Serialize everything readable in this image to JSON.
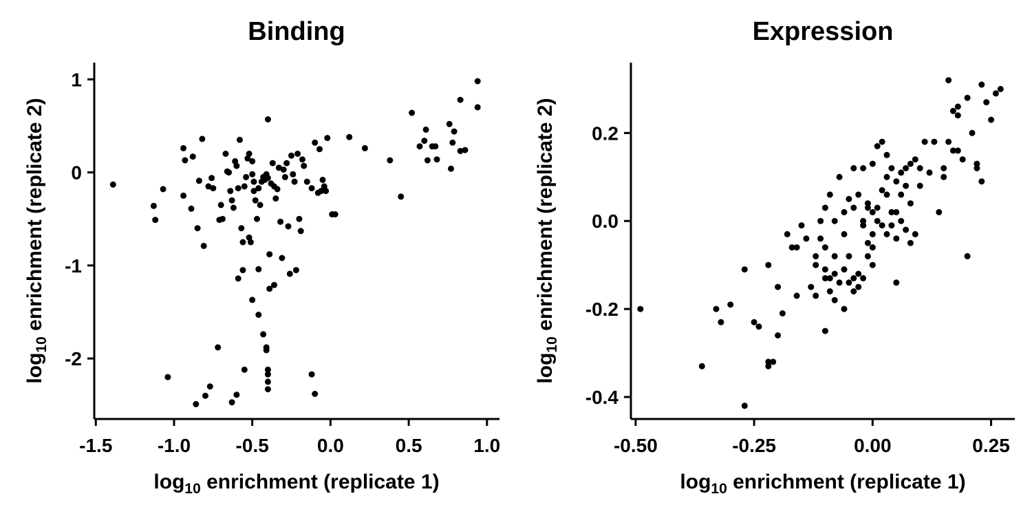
{
  "chart_data": [
    {
      "type": "scatter",
      "title": "Binding",
      "xlabel": {
        "prefix": "log",
        "sub": "10",
        "rest": " enrichment (replicate 1)"
      },
      "ylabel": {
        "prefix": "log",
        "sub": "10",
        "rest": " enrichment (replicate 2)"
      },
      "xlim": [
        -1.51,
        1.08
      ],
      "ylim": [
        -2.65,
        1.18
      ],
      "xticks": [
        -1.5,
        -1.0,
        -0.5,
        0.0,
        0.5,
        1.0
      ],
      "xtick_labels": [
        "-1.5",
        "-1.0",
        "-0.5",
        "0.0",
        "0.5",
        "1.0"
      ],
      "yticks": [
        1,
        0,
        -1,
        -2
      ],
      "ytick_labels": [
        "1",
        "0",
        "-1",
        "-2"
      ],
      "grid": false,
      "color": "#000000",
      "points": [
        [
          -1.39,
          -0.13
        ],
        [
          -1.13,
          -0.36
        ],
        [
          -1.12,
          -0.51
        ],
        [
          -1.07,
          -0.18
        ],
        [
          -0.94,
          0.26
        ],
        [
          -0.93,
          0.13
        ],
        [
          -0.94,
          -0.25
        ],
        [
          -0.89,
          -0.39
        ],
        [
          -0.88,
          0.17
        ],
        [
          -0.85,
          -0.6
        ],
        [
          -0.84,
          -0.09
        ],
        [
          -0.82,
          0.36
        ],
        [
          -0.81,
          -0.79
        ],
        [
          -0.78,
          -0.15
        ],
        [
          -0.76,
          -0.06
        ],
        [
          -0.75,
          -0.17
        ],
        [
          -0.71,
          -0.51
        ],
        [
          -0.7,
          -0.35
        ],
        [
          -0.69,
          -0.5
        ],
        [
          -0.67,
          0.2
        ],
        [
          -0.66,
          0.01
        ],
        [
          -0.65,
          0.0
        ],
        [
          -0.64,
          -0.2
        ],
        [
          -0.63,
          -0.3
        ],
        [
          -0.62,
          -0.38
        ],
        [
          -0.61,
          0.12
        ],
        [
          -0.6,
          0.07
        ],
        [
          -0.59,
          -0.17
        ],
        [
          -0.58,
          0.35
        ],
        [
          -0.57,
          -0.6
        ],
        [
          -0.56,
          -0.75
        ],
        [
          -0.55,
          -0.15
        ],
        [
          -0.54,
          -0.05
        ],
        [
          -0.53,
          0.15
        ],
        [
          -0.52,
          0.2
        ],
        [
          -0.52,
          -0.7
        ],
        [
          -0.51,
          -0.75
        ],
        [
          -0.5,
          0.12
        ],
        [
          -0.5,
          -0.02
        ],
        [
          -0.49,
          -0.1
        ],
        [
          -0.49,
          -0.2
        ],
        [
          -0.48,
          -0.3
        ],
        [
          -0.47,
          -0.5
        ],
        [
          -0.46,
          -1.04
        ],
        [
          -0.46,
          -0.17
        ],
        [
          -0.45,
          -0.35
        ],
        [
          -0.44,
          -0.1
        ],
        [
          -0.43,
          -0.05
        ],
        [
          -0.42,
          -0.08
        ],
        [
          -0.41,
          -0.02
        ],
        [
          -0.4,
          0.57
        ],
        [
          -0.4,
          -0.06
        ],
        [
          -0.39,
          -0.88
        ],
        [
          -0.38,
          -0.12
        ],
        [
          -0.37,
          0.1
        ],
        [
          -0.36,
          -0.15
        ],
        [
          -0.35,
          -0.28
        ],
        [
          -0.34,
          -0.18
        ],
        [
          -0.33,
          0.05
        ],
        [
          -0.32,
          -0.53
        ],
        [
          -0.31,
          -0.92
        ],
        [
          -0.3,
          0.03
        ],
        [
          -0.29,
          -0.05
        ],
        [
          -0.28,
          0.1
        ],
        [
          -0.27,
          -0.58
        ],
        [
          -0.26,
          -1.09
        ],
        [
          -0.25,
          0.18
        ],
        [
          -0.24,
          -0.02
        ],
        [
          -0.23,
          -0.1
        ],
        [
          -0.22,
          -1.05
        ],
        [
          -0.21,
          0.2
        ],
        [
          -0.2,
          -0.5
        ],
        [
          -0.19,
          -0.63
        ],
        [
          -0.18,
          0.14
        ],
        [
          -0.17,
          0.07
        ],
        [
          -0.15,
          -0.1
        ],
        [
          -0.12,
          -0.17
        ],
        [
          -0.1,
          0.32
        ],
        [
          -0.08,
          -0.22
        ],
        [
          -0.07,
          0.25
        ],
        [
          -0.06,
          -0.2
        ],
        [
          -0.05,
          -0.08
        ],
        [
          -0.04,
          -0.15
        ],
        [
          -0.03,
          -0.2
        ],
        [
          -0.02,
          0.37
        ],
        [
          0.01,
          -0.45
        ],
        [
          0.03,
          -0.45
        ],
        [
          0.12,
          0.38
        ],
        [
          0.22,
          0.26
        ],
        [
          0.38,
          0.13
        ],
        [
          0.45,
          -0.26
        ],
        [
          0.52,
          0.64
        ],
        [
          0.57,
          0.28
        ],
        [
          0.6,
          0.34
        ],
        [
          0.61,
          0.46
        ],
        [
          0.62,
          0.13
        ],
        [
          0.65,
          0.28
        ],
        [
          0.67,
          0.28
        ],
        [
          0.68,
          0.14
        ],
        [
          0.76,
          0.52
        ],
        [
          0.77,
          0.04
        ],
        [
          0.78,
          0.32
        ],
        [
          0.79,
          0.44
        ],
        [
          0.83,
          0.23
        ],
        [
          0.83,
          0.78
        ],
        [
          0.86,
          0.24
        ],
        [
          0.94,
          0.7
        ],
        [
          0.94,
          0.98
        ],
        [
          -0.59,
          -1.14
        ],
        [
          -0.56,
          -1.05
        ],
        [
          -0.5,
          -1.37
        ],
        [
          -0.46,
          -1.53
        ],
        [
          -0.43,
          -1.74
        ],
        [
          -0.41,
          -1.88
        ],
        [
          -0.41,
          -1.91
        ],
        [
          -0.4,
          -2.12
        ],
        [
          -0.4,
          -2.17
        ],
        [
          -0.4,
          -2.25
        ],
        [
          -0.4,
          -2.33
        ],
        [
          -0.36,
          -1.21
        ],
        [
          -0.39,
          -1.25
        ],
        [
          -0.72,
          -1.88
        ],
        [
          -1.04,
          -2.2
        ],
        [
          -0.86,
          -2.49
        ],
        [
          -0.8,
          -2.4
        ],
        [
          -0.77,
          -2.3
        ],
        [
          -0.63,
          -2.47
        ],
        [
          -0.6,
          -2.39
        ],
        [
          -0.55,
          -2.12
        ],
        [
          -0.12,
          -2.17
        ],
        [
          -0.1,
          -2.38
        ]
      ]
    },
    {
      "type": "scatter",
      "title": "Expression",
      "xlabel": {
        "prefix": "log",
        "sub": "10",
        "rest": " enrichment (replicate 1)"
      },
      "ylabel": {
        "prefix": "log",
        "sub": "10",
        "rest": " enrichment (replicate 2)"
      },
      "xlim": [
        -0.51,
        0.3
      ],
      "ylim": [
        -0.45,
        0.36
      ],
      "xticks": [
        -0.5,
        -0.25,
        0.0,
        0.25
      ],
      "xtick_labels": [
        "-0.50",
        "-0.25",
        "0.00",
        "0.25"
      ],
      "yticks": [
        0.2,
        0.0,
        -0.2,
        -0.4
      ],
      "ytick_labels": [
        "0.2",
        "0.0",
        "-0.2",
        "-0.4"
      ],
      "grid": false,
      "color": "#000000",
      "points": [
        [
          -0.49,
          -0.2
        ],
        [
          -0.36,
          -0.33
        ],
        [
          -0.33,
          -0.2
        ],
        [
          -0.32,
          -0.23
        ],
        [
          -0.3,
          -0.19
        ],
        [
          -0.27,
          -0.42
        ],
        [
          -0.27,
          -0.11
        ],
        [
          -0.25,
          -0.23
        ],
        [
          -0.24,
          -0.24
        ],
        [
          -0.22,
          -0.1
        ],
        [
          -0.22,
          -0.32
        ],
        [
          -0.22,
          -0.33
        ],
        [
          -0.21,
          -0.32
        ],
        [
          -0.2,
          -0.26
        ],
        [
          -0.2,
          -0.15
        ],
        [
          -0.19,
          -0.21
        ],
        [
          -0.18,
          -0.03
        ],
        [
          -0.17,
          -0.06
        ],
        [
          -0.16,
          -0.17
        ],
        [
          -0.16,
          -0.06
        ],
        [
          -0.15,
          -0.01
        ],
        [
          -0.14,
          -0.04
        ],
        [
          -0.13,
          -0.15
        ],
        [
          -0.12,
          -0.17
        ],
        [
          -0.12,
          -0.08
        ],
        [
          -0.11,
          0.0
        ],
        [
          -0.11,
          -0.04
        ],
        [
          -0.1,
          -0.13
        ],
        [
          -0.1,
          -0.25
        ],
        [
          -0.1,
          -0.11
        ],
        [
          -0.1,
          -0.06
        ],
        [
          -0.09,
          0.06
        ],
        [
          -0.09,
          -0.13
        ],
        [
          -0.09,
          -0.16
        ],
        [
          -0.08,
          -0.12
        ],
        [
          -0.08,
          -0.08
        ],
        [
          -0.08,
          -0.18
        ],
        [
          -0.07,
          -0.14
        ],
        [
          -0.07,
          0.1
        ],
        [
          -0.06,
          -0.2
        ],
        [
          -0.06,
          -0.11
        ],
        [
          -0.06,
          -0.03
        ],
        [
          -0.05,
          -0.08
        ],
        [
          -0.05,
          -0.14
        ],
        [
          -0.04,
          -0.13
        ],
        [
          -0.04,
          -0.16
        ],
        [
          -0.04,
          0.12
        ],
        [
          -0.04,
          0.03
        ],
        [
          -0.03,
          0.06
        ],
        [
          -0.03,
          -0.12
        ],
        [
          -0.03,
          -0.15
        ],
        [
          -0.02,
          0.12
        ],
        [
          -0.02,
          0.0
        ],
        [
          -0.02,
          -0.01
        ],
        [
          -0.02,
          -0.13
        ],
        [
          -0.01,
          0.03
        ],
        [
          -0.01,
          -0.05
        ],
        [
          -0.01,
          -0.08
        ],
        [
          -0.01,
          0.04
        ],
        [
          0.0,
          0.13
        ],
        [
          0.0,
          0.02
        ],
        [
          0.0,
          -0.03
        ],
        [
          0.0,
          -0.06
        ],
        [
          0.0,
          -0.1
        ],
        [
          0.01,
          0.03
        ],
        [
          0.01,
          0.0
        ],
        [
          0.01,
          0.17
        ],
        [
          0.02,
          0.18
        ],
        [
          0.02,
          -0.01
        ],
        [
          0.02,
          0.07
        ],
        [
          0.03,
          0.15
        ],
        [
          0.03,
          0.1
        ],
        [
          0.03,
          0.06
        ],
        [
          0.03,
          -0.03
        ],
        [
          0.04,
          -0.01
        ],
        [
          0.04,
          0.12
        ],
        [
          0.04,
          0.02
        ],
        [
          0.05,
          -0.04
        ],
        [
          0.05,
          -0.14
        ],
        [
          0.05,
          0.02
        ],
        [
          0.05,
          0.09
        ],
        [
          0.06,
          0.11
        ],
        [
          0.06,
          0.06
        ],
        [
          0.06,
          0.0
        ],
        [
          0.07,
          0.08
        ],
        [
          0.07,
          0.12
        ],
        [
          0.07,
          -0.02
        ],
        [
          0.08,
          0.13
        ],
        [
          0.08,
          0.04
        ],
        [
          0.08,
          -0.05
        ],
        [
          0.09,
          0.14
        ],
        [
          0.09,
          -0.03
        ],
        [
          0.1,
          0.12
        ],
        [
          0.1,
          0.08
        ],
        [
          0.11,
          0.18
        ],
        [
          0.12,
          0.11
        ],
        [
          0.13,
          0.18
        ],
        [
          0.14,
          0.02
        ],
        [
          0.15,
          0.12
        ],
        [
          0.15,
          0.1
        ],
        [
          0.16,
          0.32
        ],
        [
          0.16,
          0.18
        ],
        [
          0.17,
          0.16
        ],
        [
          0.17,
          0.25
        ],
        [
          0.18,
          0.26
        ],
        [
          0.18,
          0.24
        ],
        [
          0.18,
          0.16
        ],
        [
          0.19,
          0.14
        ],
        [
          0.2,
          -0.08
        ],
        [
          0.2,
          0.28
        ],
        [
          0.21,
          0.2
        ],
        [
          0.22,
          0.13
        ],
        [
          0.22,
          0.12
        ],
        [
          0.23,
          0.31
        ],
        [
          0.23,
          0.09
        ],
        [
          0.24,
          0.27
        ],
        [
          0.25,
          0.23
        ],
        [
          0.26,
          0.29
        ],
        [
          0.27,
          0.3
        ],
        [
          -0.1,
          0.03
        ],
        [
          -0.08,
          0.0
        ],
        [
          -0.06,
          0.02
        ],
        [
          -0.05,
          0.05
        ],
        [
          -0.12,
          -0.1
        ]
      ]
    }
  ]
}
